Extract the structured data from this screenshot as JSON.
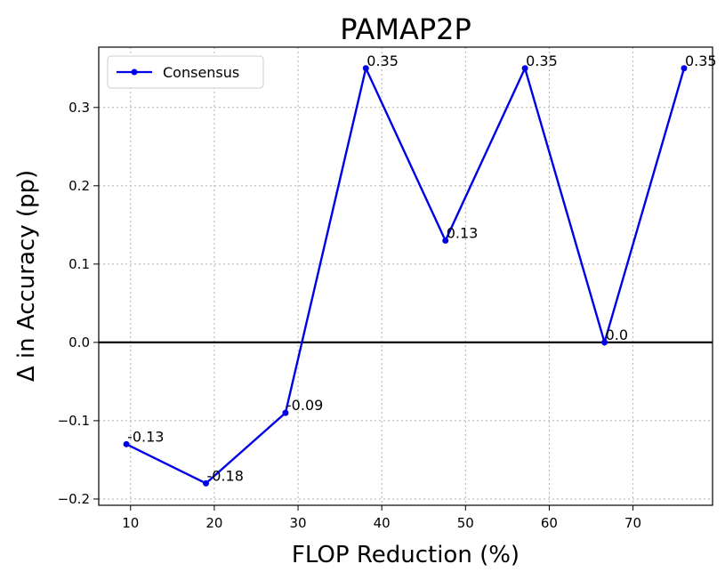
{
  "chart_data": {
    "type": "line",
    "title": "PAMAP2P",
    "xlabel": "FLOP Reduction (%)",
    "ylabel": "Δ in Accuracy (pp)",
    "xlim": [
      6.2,
      79.5
    ],
    "ylim": [
      -0.208,
      0.377
    ],
    "xticks": [
      10,
      20,
      30,
      40,
      50,
      60,
      70
    ],
    "yticks": [
      -0.2,
      -0.1,
      0.0,
      0.1,
      0.2,
      0.3
    ],
    "xtick_labels": [
      "10",
      "20",
      "30",
      "40",
      "50",
      "60",
      "70"
    ],
    "ytick_labels": [
      "−0.2",
      "−0.1",
      "0.0",
      "0.1",
      "0.2",
      "0.3"
    ],
    "grid": true,
    "reference_line_y": 0.0,
    "legend_position": "top-left",
    "colors": {
      "series": "#0000e6",
      "axis": "#000000",
      "grid": "#b0b0b0"
    },
    "series": [
      {
        "name": "Consensus",
        "x": [
          9.5,
          19.0,
          28.5,
          38.1,
          47.6,
          57.1,
          66.6,
          76.1
        ],
        "y": [
          -0.13,
          -0.18,
          -0.09,
          0.35,
          0.13,
          0.35,
          0.0,
          0.35
        ],
        "labels": [
          "-0.13",
          "-0.18",
          "-0.09",
          "0.35",
          "0.13",
          "0.35",
          "0.0",
          "0.35"
        ]
      }
    ]
  }
}
